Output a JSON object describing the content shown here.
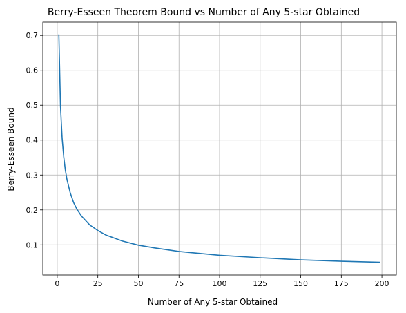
{
  "chart_data": {
    "type": "line",
    "title": "Berry-Esseen Theorem Bound vs Number of Any 5-star Obtained",
    "xlabel": "Number of Any 5-star Obtained",
    "ylabel": "Berry-Esseen Bound",
    "xlim": [
      -8.9,
      208.9
    ],
    "ylim": [
      0.0135,
      0.738
    ],
    "xticks": [
      0,
      25,
      50,
      75,
      100,
      125,
      150,
      175,
      200
    ],
    "xtick_labels": [
      "0",
      "25",
      "50",
      "75",
      "100",
      "125",
      "150",
      "175",
      "200"
    ],
    "yticks": [
      0.1,
      0.2,
      0.3,
      0.4,
      0.5,
      0.6,
      0.7
    ],
    "ytick_labels": [
      "0.1",
      "0.2",
      "0.3",
      "0.4",
      "0.5",
      "0.6",
      "0.7"
    ],
    "grid": true,
    "legend": "none",
    "series": [
      {
        "color": "#1f77b4",
        "x": [
          1,
          2,
          3,
          4,
          5,
          6,
          8,
          10,
          12,
          15,
          20,
          25,
          30,
          40,
          50,
          60,
          75,
          100,
          125,
          150,
          175,
          199
        ],
        "y": [
          0.703,
          0.497,
          0.406,
          0.352,
          0.314,
          0.287,
          0.249,
          0.222,
          0.203,
          0.182,
          0.157,
          0.141,
          0.128,
          0.111,
          0.099,
          0.091,
          0.081,
          0.07,
          0.063,
          0.057,
          0.053,
          0.05
        ]
      }
    ]
  }
}
